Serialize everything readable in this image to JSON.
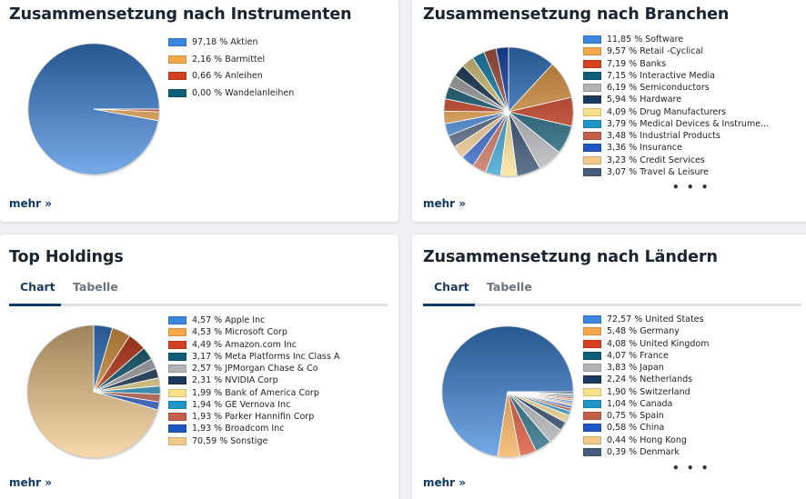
{
  "more_label": "mehr »",
  "ellipsis": "• • •",
  "cards": {
    "instruments": {
      "title": "Zusammensetzung nach Instrumenten",
      "chart_data": {
        "type": "pie",
        "title": "Zusammensetzung nach Instrumenten",
        "labels": [
          "97,18 % Aktien",
          "2,16 % Barmittel",
          "0,66 % Anleihen",
          "0,00 % Wandelanleihen"
        ],
        "values": [
          97.18,
          2.16,
          0.66,
          0.0
        ],
        "colors": [
          "#3b86de",
          "#f5a84a",
          "#d7401f",
          "#0f5e78"
        ]
      }
    },
    "sectors": {
      "title": "Zusammensetzung nach Branchen",
      "chart_data": {
        "type": "pie",
        "title": "Zusammensetzung nach Branchen",
        "labels": [
          "11,85 % Software",
          "9,57 % Retail -Cyclical",
          "7,19 % Banks",
          "7,15 % Interactive Media",
          "6,19 % Semiconductors",
          "5,94 % Hardware",
          "4,09 % Drug Manufacturers",
          "3,79 % Medical Devices & Instrume...",
          "3,48 % Industrial Products",
          "3,36 % Insurance",
          "3,23 % Credit Services",
          "3,07 % Travel & Leisure"
        ],
        "values": [
          11.85,
          9.57,
          7.19,
          7.15,
          6.19,
          5.94,
          4.09,
          3.79,
          3.48,
          3.36,
          3.23,
          3.07
        ],
        "colors": [
          "#3b86de",
          "#f5a84a",
          "#d7401f",
          "#0f5e78",
          "#b1b3b6",
          "#1c3a5e",
          "#fbe08a",
          "#1f96c8",
          "#c4604a",
          "#1f56c4",
          "#f3c98a",
          "#465c7a"
        ],
        "rest_colors": [
          "#3b86de",
          "#f5a84a",
          "#d7401f",
          "#0f5e78",
          "#b1b3b6",
          "#1c3a5e",
          "#fbe08a",
          "#1f96c8",
          "#c4604a",
          "#1f56c4"
        ]
      }
    },
    "holdings": {
      "title": "Top Holdings",
      "tabs": [
        "Chart",
        "Tabelle"
      ],
      "chart_data": {
        "type": "pie",
        "title": "Top Holdings",
        "labels": [
          "4,57 % Apple Inc",
          "4,53 % Microsoft Corp",
          "4,49 % Amazon.com Inc",
          "3,17 % Meta Platforms Inc Class A",
          "2,57 % JPMorgan Chase & Co",
          "2,31 % NVIDIA Corp",
          "1,99 % Bank of America Corp",
          "1,94 % GE Vernova Inc",
          "1,93 % Parker Hannifin Corp",
          "1,93 % Broadcom Inc",
          "70,59 % Sonstige"
        ],
        "values": [
          4.57,
          4.53,
          4.49,
          3.17,
          2.57,
          2.31,
          1.99,
          1.94,
          1.93,
          1.93,
          70.59
        ],
        "colors": [
          "#3b86de",
          "#f5a84a",
          "#d7401f",
          "#0f5e78",
          "#b1b3b6",
          "#1c3a5e",
          "#fbe08a",
          "#1f96c8",
          "#c4604a",
          "#1f56c4",
          "#f3c98a"
        ]
      }
    },
    "countries": {
      "title": "Zusammensetzung nach Ländern",
      "tabs": [
        "Chart",
        "Tabelle"
      ],
      "chart_data": {
        "type": "pie",
        "title": "Zusammensetzung nach Ländern",
        "labels": [
          "72,57 % United States",
          "5,48 % Germany",
          "4,08 % United Kingdom",
          "4,07 % France",
          "3,83 % Japan",
          "2,24 % Netherlands",
          "1,90 % Switzerland",
          "1,04 % Canada",
          "0,75 % Spain",
          "0,58 % China",
          "0,44 % Hong Kong",
          "0,39 % Denmark"
        ],
        "values": [
          72.57,
          5.48,
          4.08,
          4.07,
          3.83,
          2.24,
          1.9,
          1.04,
          0.75,
          0.58,
          0.44,
          0.39
        ],
        "colors": [
          "#3b86de",
          "#f5a84a",
          "#d7401f",
          "#0f5e78",
          "#b1b3b6",
          "#1c3a5e",
          "#fbe08a",
          "#1f96c8",
          "#c4604a",
          "#1f56c4",
          "#f3c98a",
          "#465c7a"
        ],
        "rest_colors": [
          "#3b86de",
          "#f5a84a",
          "#d7401f",
          "#0f5e78",
          "#b1b3b6",
          "#1c3a5e"
        ]
      }
    }
  }
}
